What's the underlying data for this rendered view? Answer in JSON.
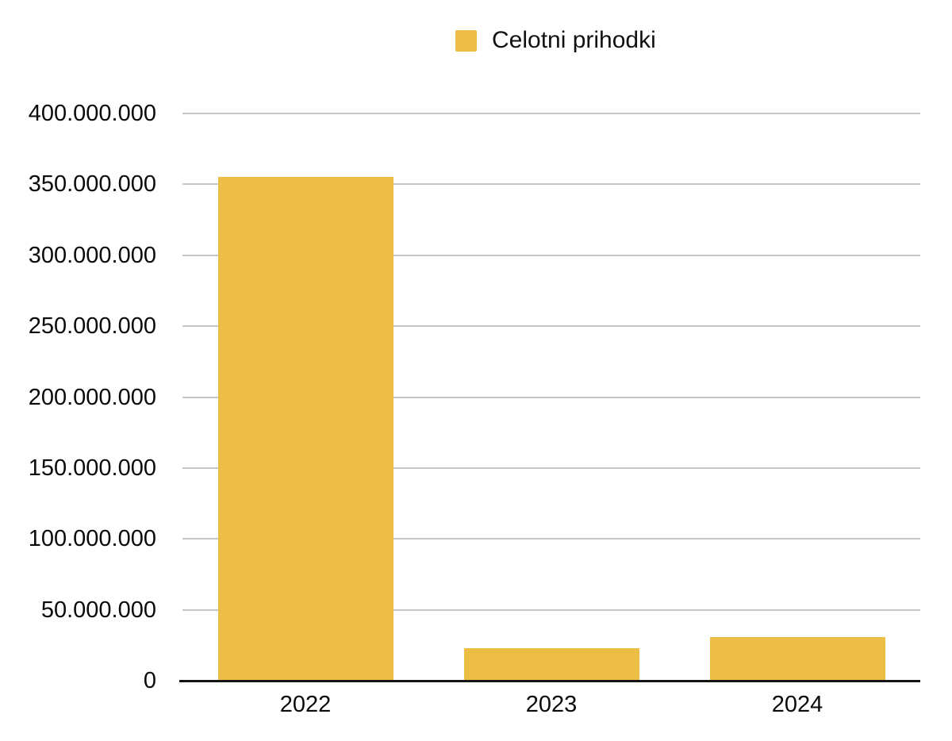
{
  "legend": {
    "position": "top-center",
    "items": [
      {
        "label": "Celotni prihodki",
        "color": "#ECBE45"
      }
    ]
  },
  "chart_data": {
    "type": "bar",
    "title": "",
    "xlabel": "",
    "ylabel": "",
    "categories": [
      "2022",
      "2023",
      "2024"
    ],
    "series": [
      {
        "name": "Celotni prihodki",
        "color": "#ECBE45",
        "values": [
          355000000,
          23000000,
          31000000
        ]
      }
    ],
    "ylim": [
      0,
      400000000
    ],
    "ytick_step": 50000000,
    "ytick_labels": [
      "0",
      "50.000.000",
      "100.000.000",
      "150.000.000",
      "200.000.000",
      "250.000.000",
      "300.000.000",
      "350.000.000",
      "400.000.000"
    ],
    "grid": true,
    "legend_position": "top-center",
    "colors": {
      "bar": "#ECBE45",
      "grid": "#C6C6C6",
      "axis": "#141414",
      "text": "#000000",
      "background": "#FFFFFF"
    }
  }
}
